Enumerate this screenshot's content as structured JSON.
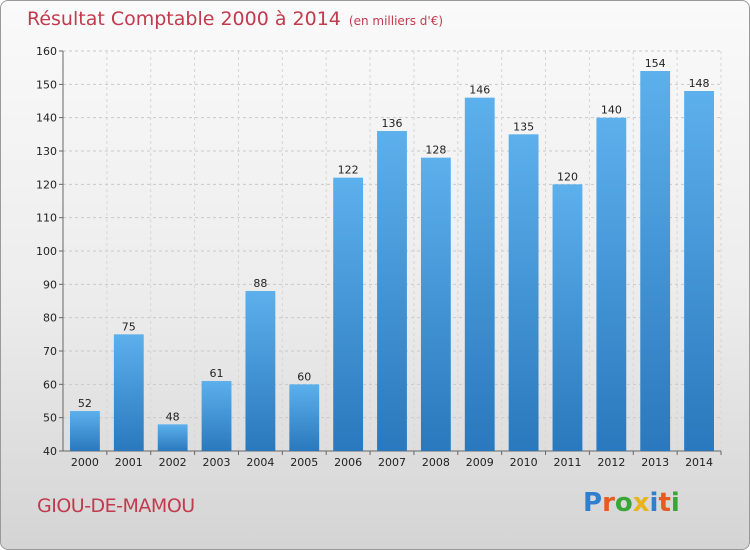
{
  "header": {
    "title": "Résultat Comptable 2000 à 2014",
    "unit": "(en milliers d'€)"
  },
  "footer": {
    "town": "GIOU-DE-MAMOU",
    "logo_letters": [
      "P",
      "r",
      "o",
      "x",
      "i",
      "t",
      "i"
    ],
    "logo_colors": [
      "#2f7fd0",
      "#e85a1e",
      "#3aa63a",
      "#e8b41a",
      "#2f7fd0",
      "#e85a1e",
      "#3aa63a"
    ]
  },
  "colors": {
    "bar_top": "#5cb0ec",
    "bar_bottom": "#2a78bd",
    "title": "#c23a4e"
  },
  "chart_data": {
    "type": "bar",
    "categories": [
      "2000",
      "2001",
      "2002",
      "2003",
      "2004",
      "2005",
      "2006",
      "2007",
      "2008",
      "2009",
      "2010",
      "2011",
      "2012",
      "2013",
      "2014"
    ],
    "values": [
      52,
      75,
      48,
      61,
      88,
      60,
      122,
      136,
      128,
      146,
      135,
      120,
      140,
      154,
      148
    ],
    "ylim": [
      40,
      160
    ],
    "yticks": [
      40,
      50,
      60,
      70,
      80,
      90,
      100,
      110,
      120,
      130,
      140,
      150,
      160
    ],
    "grid": true
  }
}
